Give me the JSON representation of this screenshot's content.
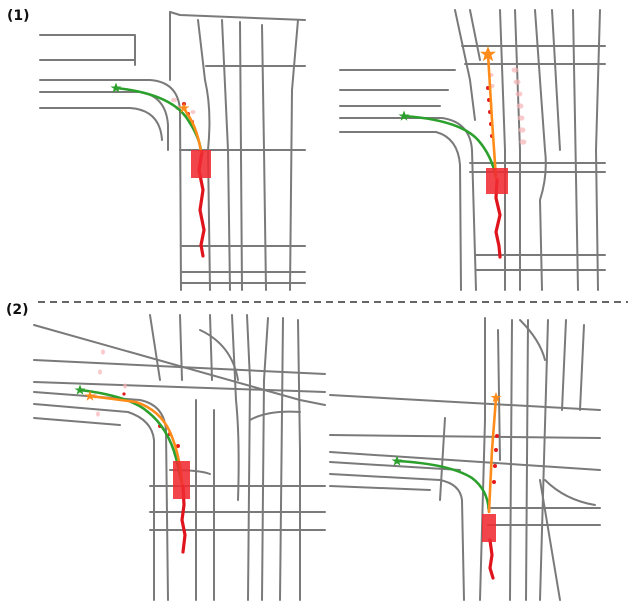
{
  "panels": [
    {
      "label": "(1)"
    },
    {
      "label": "(2)"
    }
  ],
  "colors": {
    "road": "#7a7a7a",
    "ego_history": "#e0141c",
    "ego_vehicle": "#f02a32",
    "path_green": "#2ca02c",
    "path_orange": "#ff8c1a",
    "divider": "#333333"
  },
  "icons": {
    "goal_marker": "star-icon",
    "vehicle": "rectangle"
  }
}
